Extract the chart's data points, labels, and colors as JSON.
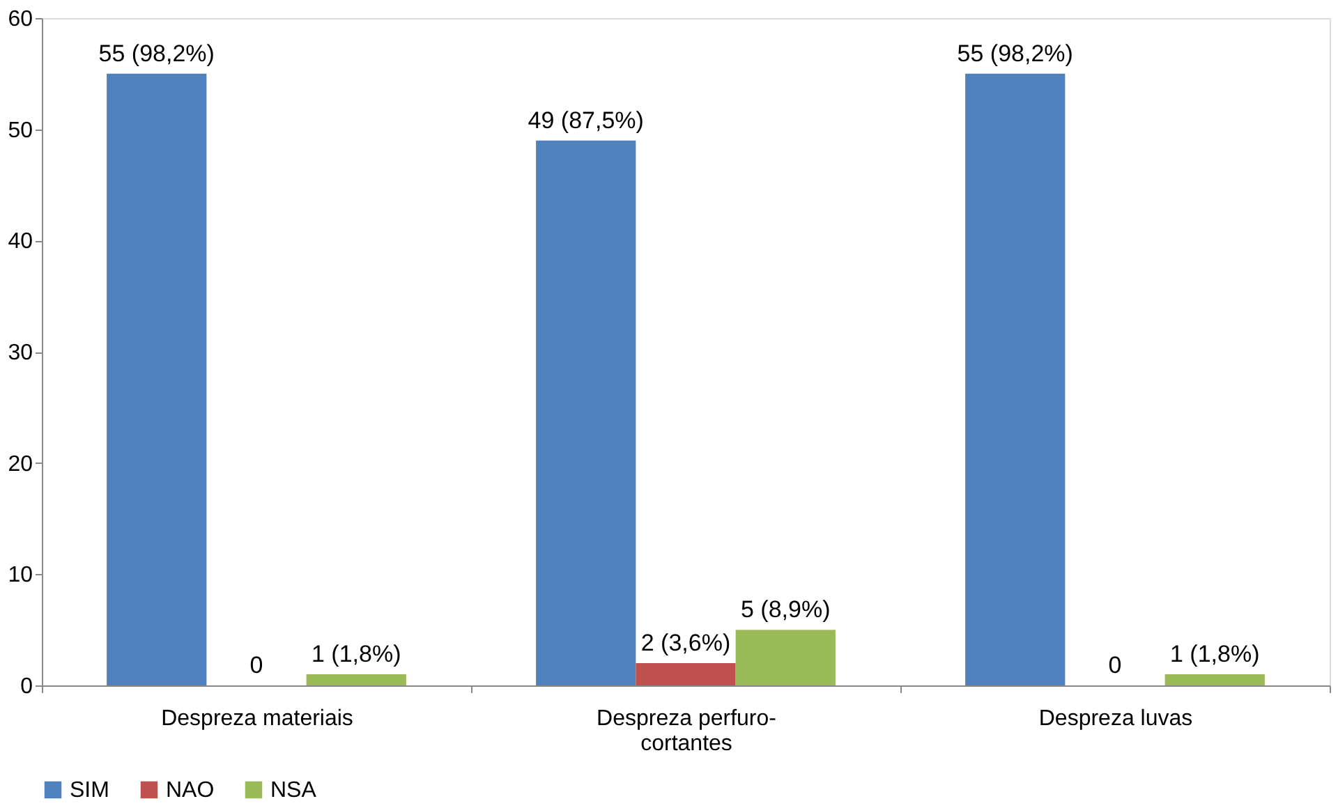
{
  "chart_data": {
    "type": "bar",
    "categories": [
      "Despreza materiais",
      "Despreza perfuro-cortantes",
      "Despreza luvas"
    ],
    "series": [
      {
        "name": "SIM",
        "color": "#4f81bd",
        "values": [
          55,
          49,
          55
        ],
        "value_labels": [
          "55 (98,2%)",
          "49 (87,5%)",
          "55 (98,2%)"
        ]
      },
      {
        "name": "NAO",
        "color": "#c0504d",
        "values": [
          0,
          2,
          0
        ],
        "value_labels": [
          "0",
          "2 (3,6%)",
          "0"
        ]
      },
      {
        "name": "NSA",
        "color": "#9bbb59",
        "values": [
          1,
          5,
          1
        ],
        "value_labels": [
          "1 (1,8%)",
          "5 (8,9%)",
          "1 (1,8%)"
        ]
      }
    ],
    "ylim": [
      0,
      60
    ],
    "yticks": [
      0,
      10,
      20,
      30,
      40,
      50,
      60
    ],
    "grid": false,
    "legend": "bottom"
  }
}
